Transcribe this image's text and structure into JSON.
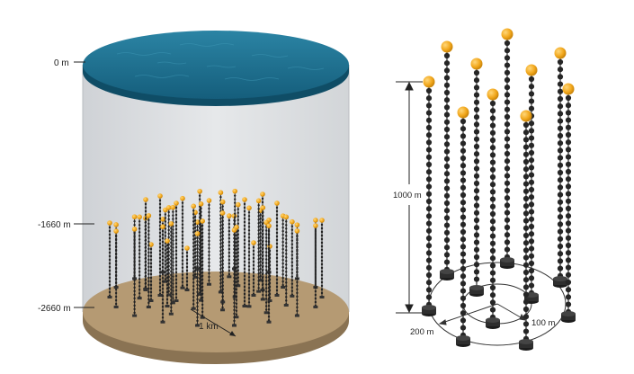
{
  "left_figure": {
    "depth_labels": {
      "surface": "0 m",
      "top_of_array": "-1660 m",
      "seabed": "-2660 m"
    },
    "scale_label": "1 km",
    "colors": {
      "sea": "#1f6f8e",
      "seabed": "#b59a73",
      "water_column": "#dcdee2",
      "sphere": "#f2a81d",
      "string": "#2b2b2b"
    }
  },
  "right_figure": {
    "height_label": "1000 m",
    "inner_radius_label": "100 m",
    "outer_radius_label": "200 m"
  }
}
